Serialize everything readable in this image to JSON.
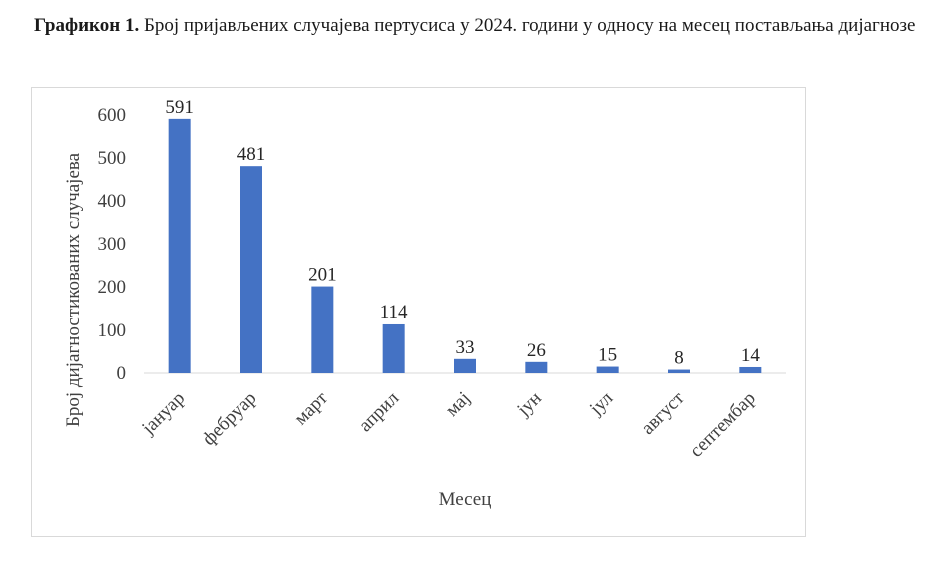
{
  "caption": {
    "label": "Графикон 1.",
    "text": "Број пријављених случајева пертусиса у 2024. години у односу на месец постављања дијагнозе"
  },
  "colors": {
    "bar": "#4472C4",
    "axis": "#d9d9d9",
    "frame": "#d9d9d9"
  },
  "chart_data": {
    "type": "bar",
    "title": "Графикон 1. Број пријављених случајева пертусиса у 2024. години у односу на месец постављања дијагнозе",
    "xlabel": "Месец",
    "ylabel": "Број дијагностикованих случајева",
    "categories": [
      "јануар",
      "фебруар",
      "март",
      "април",
      "мај",
      "јун",
      "јул",
      "август",
      "септембар"
    ],
    "values": [
      591,
      481,
      201,
      114,
      33,
      26,
      15,
      8,
      14
    ],
    "ylim": [
      0,
      600
    ],
    "yticks": [
      0,
      100,
      200,
      300,
      400,
      500,
      600
    ],
    "grid": false,
    "data_labels": true
  }
}
